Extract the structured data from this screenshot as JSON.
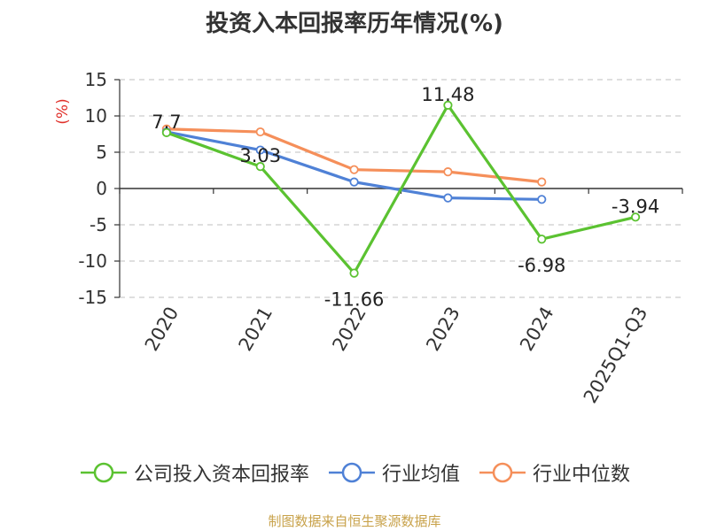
{
  "chart_data": {
    "type": "line",
    "title": "投资入本回报率历年情况(%)",
    "ylabel": "(%)",
    "categories": [
      "2020",
      "2021",
      "2022",
      "2023",
      "2024",
      "2025Q1-Q3"
    ],
    "ylim": [
      -15,
      15
    ],
    "yticks": [
      15,
      10,
      5,
      0,
      -5,
      -10,
      -15
    ],
    "grid": true,
    "legend_position": "bottom",
    "series": [
      {
        "name": "公司投入资本回报率",
        "color": "#5bc231",
        "values": [
          7.7,
          3.03,
          -11.66,
          11.48,
          -6.98,
          -3.94
        ],
        "labels": [
          "7.7",
          "3.03",
          "-11.66",
          "11.48",
          "-6.98",
          "-3.94"
        ]
      },
      {
        "name": "行业均值",
        "color": "#4f81d6",
        "values": [
          7.8,
          5.3,
          0.9,
          -1.3,
          -1.5,
          null
        ]
      },
      {
        "name": "行业中位数",
        "color": "#f58f5a",
        "values": [
          8.2,
          7.8,
          2.6,
          2.3,
          0.9,
          null
        ]
      }
    ]
  },
  "source_note": "制图数据来自恒生聚源数据库"
}
